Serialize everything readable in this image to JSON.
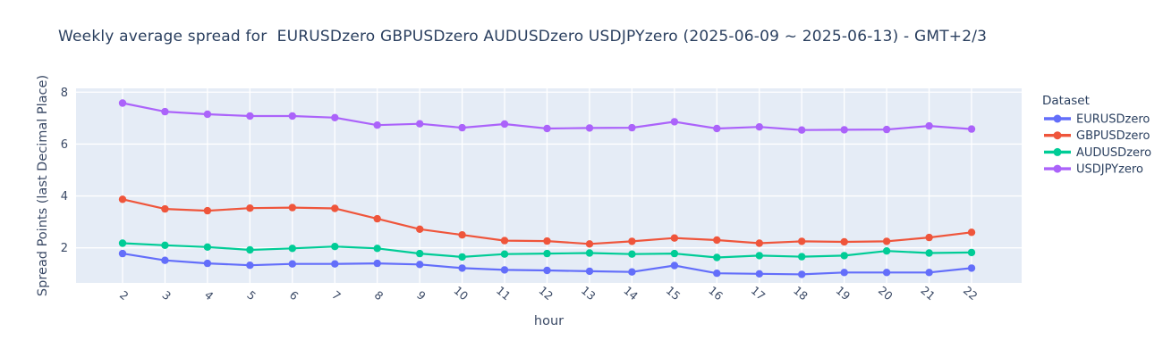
{
  "title": "Weekly average spread for  EURUSDzero GBPUSDzero AUDUSDzero USDJPYzero (2025-06-09 ~ 2025-06-13) - GMT+2/3",
  "colors": {
    "text": "#2a3f5f",
    "tick_text": "#3b4a66",
    "plot_bg": "#e5ecf6",
    "grid": "#ffffff",
    "paper": "#ffffff"
  },
  "legend": {
    "title": "Dataset",
    "items": [
      "EURUSDzero",
      "GBPUSDzero",
      "AUDUSDzero",
      "USDJPYzero"
    ]
  },
  "chart_data": {
    "type": "line",
    "title": "Weekly average spread for  EURUSDzero GBPUSDzero AUDUSDzero USDJPYzero (2025-06-09 ~ 2025-06-13) - GMT+2/3",
    "xlabel": "hour",
    "ylabel": "Spread Points (last Decimal Place)",
    "x": [
      2,
      3,
      4,
      5,
      6,
      7,
      8,
      9,
      10,
      11,
      12,
      13,
      14,
      15,
      16,
      17,
      18,
      19,
      20,
      21,
      22
    ],
    "yticks": [
      2,
      4,
      6,
      8
    ],
    "ylim": [
      0.65,
      8.15
    ],
    "grid": true,
    "legend_position": "right",
    "legend_title": "Dataset",
    "series": [
      {
        "name": "EURUSDzero",
        "color": "#636efa",
        "values": [
          1.78,
          1.52,
          1.4,
          1.33,
          1.38,
          1.38,
          1.4,
          1.36,
          1.22,
          1.15,
          1.13,
          1.1,
          1.07,
          1.32,
          1.02,
          1.0,
          0.98,
          1.05,
          1.05,
          1.05,
          1.22
        ]
      },
      {
        "name": "GBPUSDzero",
        "color": "#ef553b",
        "values": [
          3.87,
          3.5,
          3.43,
          3.53,
          3.55,
          3.52,
          3.12,
          2.72,
          2.5,
          2.28,
          2.26,
          2.15,
          2.25,
          2.38,
          2.3,
          2.18,
          2.25,
          2.23,
          2.25,
          2.4,
          2.6
        ]
      },
      {
        "name": "AUDUSDzero",
        "color": "#00cc96",
        "values": [
          2.18,
          2.1,
          2.03,
          1.92,
          1.98,
          2.05,
          1.98,
          1.78,
          1.65,
          1.76,
          1.78,
          1.8,
          1.76,
          1.78,
          1.63,
          1.7,
          1.66,
          1.7,
          1.88,
          1.8,
          1.82
        ]
      },
      {
        "name": "USDJPYzero",
        "color": "#ab63fa",
        "values": [
          7.58,
          7.25,
          7.15,
          7.08,
          7.08,
          7.02,
          6.73,
          6.78,
          6.63,
          6.77,
          6.6,
          6.62,
          6.63,
          6.86,
          6.6,
          6.66,
          6.54,
          6.55,
          6.56,
          6.7,
          6.58
        ]
      }
    ]
  }
}
